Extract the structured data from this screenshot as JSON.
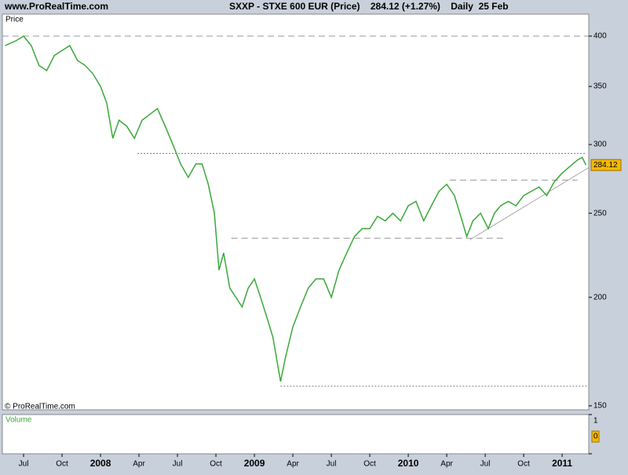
{
  "header": {
    "site": "www.ProRealTime.com",
    "title": "SXXP - STXE 600 EUR (Price)    284.12 (+1.27%)    Daily  25 Feb"
  },
  "chart_data": {
    "type": "line",
    "panel_label": "Price",
    "copyright": "© ProRealTime.com",
    "log_scale": true,
    "color": "#3aa83a",
    "x": [
      2007.38,
      2007.45,
      2007.5,
      2007.55,
      2007.6,
      2007.65,
      2007.7,
      2007.75,
      2007.8,
      2007.85,
      2007.9,
      2007.95,
      2008.0,
      2008.04,
      2008.08,
      2008.12,
      2008.17,
      2008.22,
      2008.27,
      2008.32,
      2008.37,
      2008.42,
      2008.47,
      2008.52,
      2008.57,
      2008.62,
      2008.66,
      2008.7,
      2008.74,
      2008.77,
      2008.8,
      2008.84,
      2008.88,
      2008.92,
      2008.96,
      2009.0,
      2009.04,
      2009.08,
      2009.12,
      2009.17,
      2009.2,
      2009.25,
      2009.3,
      2009.35,
      2009.4,
      2009.45,
      2009.5,
      2009.55,
      2009.6,
      2009.65,
      2009.7,
      2009.75,
      2009.8,
      2009.85,
      2009.9,
      2009.95,
      2010.0,
      2010.05,
      2010.1,
      2010.15,
      2010.2,
      2010.25,
      2010.3,
      2010.35,
      2010.38,
      2010.42,
      2010.47,
      2010.52,
      2010.56,
      2010.6,
      2010.65,
      2010.7,
      2010.75,
      2010.8,
      2010.85,
      2010.9,
      2010.95,
      2011.0,
      2011.05,
      2011.1,
      2011.13,
      2011.155
    ],
    "values": [
      390,
      395,
      400,
      390,
      370,
      365,
      380,
      385,
      390,
      375,
      370,
      362,
      350,
      335,
      305,
      320,
      315,
      305,
      320,
      325,
      330,
      315,
      300,
      285,
      275,
      285,
      285,
      270,
      250,
      215,
      225,
      205,
      200,
      195,
      205,
      210,
      200,
      190,
      180,
      160,
      170,
      185,
      195,
      205,
      210,
      210,
      200,
      215,
      225,
      235,
      240,
      240,
      248,
      245,
      250,
      245,
      255,
      258,
      245,
      255,
      265,
      270,
      262,
      245,
      235,
      245,
      250,
      240,
      250,
      255,
      258,
      255,
      262,
      265,
      268,
      262,
      272,
      278,
      283,
      288,
      290,
      284.12
    ],
    "last_label": "284.12",
    "xlim": [
      2007.362,
      2011.173
    ],
    "ylim": [
      148.4,
      424
    ],
    "yticks": [
      150,
      200,
      250,
      300,
      350,
      400
    ],
    "xticks": [
      {
        "value": 2007.5,
        "label": "Jul"
      },
      {
        "value": 2007.75,
        "label": "Oct"
      },
      {
        "value": 2008,
        "label": "2008"
      },
      {
        "value": 2008.25,
        "label": "Apr"
      },
      {
        "value": 2008.5,
        "label": "Jul"
      },
      {
        "value": 2008.75,
        "label": "Oct"
      },
      {
        "value": 2009,
        "label": "2009"
      },
      {
        "value": 2009.25,
        "label": "Apr"
      },
      {
        "value": 2009.5,
        "label": "Jul"
      },
      {
        "value": 2009.75,
        "label": "Oct"
      },
      {
        "value": 2010,
        "label": "2010"
      },
      {
        "value": 2010.25,
        "label": "Apr"
      },
      {
        "value": 2010.5,
        "label": "Jul"
      },
      {
        "value": 2010.75,
        "label": "Oct"
      },
      {
        "value": 2011,
        "label": "2011"
      }
    ],
    "ref_lines": [
      {
        "x": [
          2007.362,
          2011.173
        ],
        "y": [
          400,
          400
        ],
        "color": "#999999",
        "dash": "8 5"
      },
      {
        "x": [
          2008.24,
          2011.15
        ],
        "y": [
          293,
          293
        ],
        "color": "#5070c0",
        "dash": "2 2"
      },
      {
        "x": [
          2010.27,
          2011.1
        ],
        "y": [
          273,
          273
        ],
        "color": "#999999",
        "dash": "8 5"
      },
      {
        "x": [
          2008.85,
          2010.62
        ],
        "y": [
          234,
          234
        ],
        "color": "#999999",
        "dash": "8 5"
      },
      {
        "x": [
          2009.17,
          2011.173
        ],
        "y": [
          158,
          158
        ],
        "color": "#777777",
        "dash": "2 2"
      },
      {
        "x": [
          2010.4,
          2011.17
        ],
        "y": [
          233,
          282
        ],
        "color": "#aaaaaa",
        "dash": "none"
      }
    ],
    "volume": {
      "label": "Volume",
      "ylim": [
        0,
        1
      ],
      "yticks": [
        1,
        0
      ]
    }
  }
}
